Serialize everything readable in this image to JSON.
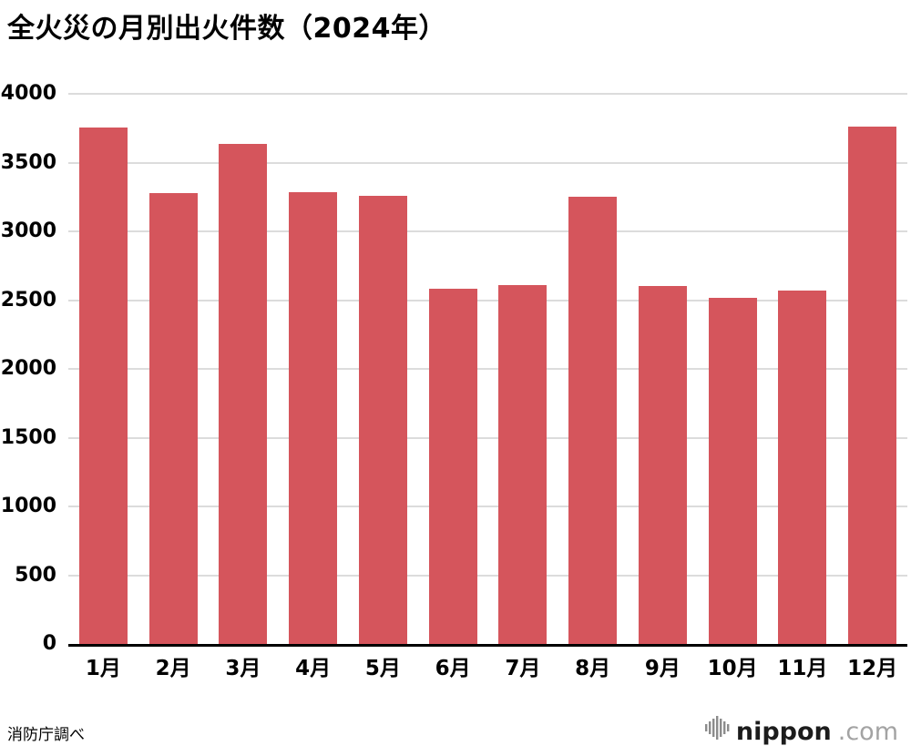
{
  "title": "全火災の月別出火件数（2024年）",
  "source": "消防庁調べ",
  "logo": {
    "name": "nippon",
    "domain": ".com"
  },
  "chart_data": {
    "type": "bar",
    "title": "全火災の月別出火件数（2024年）",
    "categories": [
      "1月",
      "2月",
      "3月",
      "4月",
      "5月",
      "6月",
      "7月",
      "8月",
      "9月",
      "10月",
      "11月",
      "12月"
    ],
    "values": [
      3755,
      3275,
      3635,
      3285,
      3260,
      2580,
      2610,
      3250,
      2600,
      2515,
      2570,
      3765
    ],
    "xlabel": "",
    "ylabel": "",
    "ylim": [
      0,
      4000
    ],
    "ytick_step": 500,
    "bar_color": "#d5555c",
    "grid": true,
    "gridline_color": "#dcdcdc",
    "axis_color": "#000000",
    "legend": "none"
  }
}
